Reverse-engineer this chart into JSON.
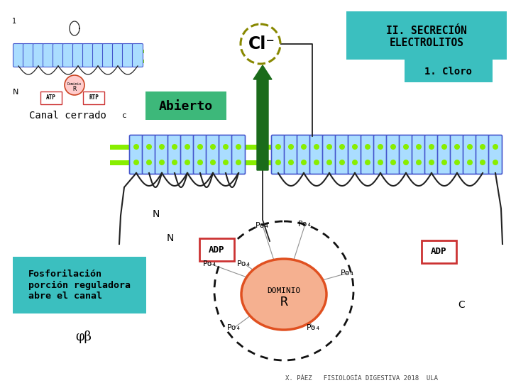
{
  "bg_color": "#ffffff",
  "title_box_color": "#3bbfbf",
  "title_text": "II. SECRECIÓN\nELECTROLITOS",
  "subtitle_text": "1. Cloro",
  "abierto_text": "Abierto",
  "abierto_box_color": "#3db87a",
  "canal_cerrado_text": "Canal cerrado",
  "fosforilacion_text": "Fosforilación\nporción reguladora\nabre el canal",
  "fosforilacion_box_color": "#3bbfbf",
  "cl_text": "Cl⁻",
  "arrow_color": "#1a6b1a",
  "membrane_color_cyan": "#aaddff",
  "membrane_color_blue": "#4455cc",
  "membrane_color_green": "#88ee00",
  "bottom_text": "X. PÁEZ   FISIOLOGÍA DIGESTIVA 2018  ULA",
  "domino_r_color": "#f5b090",
  "domino_r_edge": "#e05020",
  "adp_box_edge": "#cc3333",
  "dashed_circle_color": "#111111",
  "loop_color": "#222222",
  "text_color": "#111111"
}
